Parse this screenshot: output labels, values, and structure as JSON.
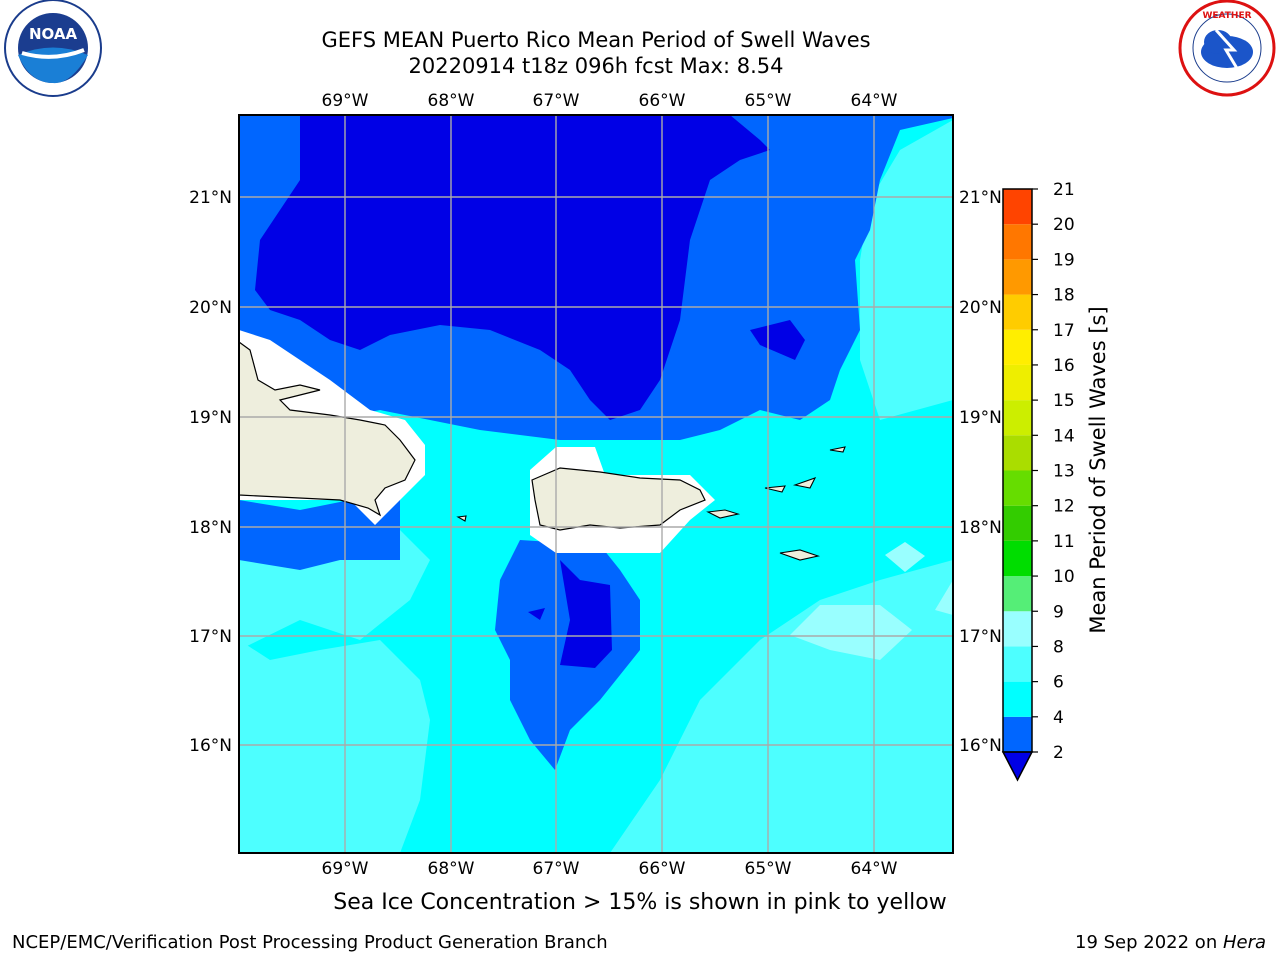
{
  "header": {
    "title_line1": "GEFS MEAN Puerto Rico Mean Period of Swell Waves",
    "title_line2": "20220914 t18z 096h fcst   Max: 8.54"
  },
  "logos": {
    "left": "NOAA",
    "right": "NATIONAL WEATHER SERVICE"
  },
  "map": {
    "lon_labels": [
      "69°W",
      "68°W",
      "67°W",
      "66°W",
      "65°W",
      "64°W"
    ],
    "lat_labels": [
      "21°N",
      "20°N",
      "19°N",
      "18°N",
      "17°N",
      "16°N"
    ],
    "ocean_colors": {
      "deep": "#0000e6",
      "dark": "#0066ff",
      "cyan": "#00ffff",
      "light": "#4dffff",
      "pale": "#99ffff",
      "land": "#eeeedd"
    }
  },
  "colorbar": {
    "label": "Mean Period of Swell Waves [s]",
    "ticks": [
      "2",
      "4",
      "6",
      "8",
      "9",
      "10",
      "11",
      "12",
      "13",
      "14",
      "15",
      "16",
      "17",
      "18",
      "19",
      "20",
      "21"
    ],
    "colors": [
      "#0066ff",
      "#00ffff",
      "#4dffff",
      "#99ffff",
      "#55ee77",
      "#00dd00",
      "#33cc00",
      "#66dd00",
      "#aadd00",
      "#ccee00",
      "#eeee00",
      "#ffee00",
      "#ffcc00",
      "#ff9900",
      "#ff7700",
      "#ff4400",
      "#ff0000"
    ],
    "extend_color": "#0000e6"
  },
  "note": "Sea Ice Concentration > 15% is shown in pink to yellow",
  "footer": {
    "left": "NCEP/EMC/Verification Post Processing Product Generation Branch",
    "right_date": "19 Sep 2022 on ",
    "right_host": "Hera"
  }
}
